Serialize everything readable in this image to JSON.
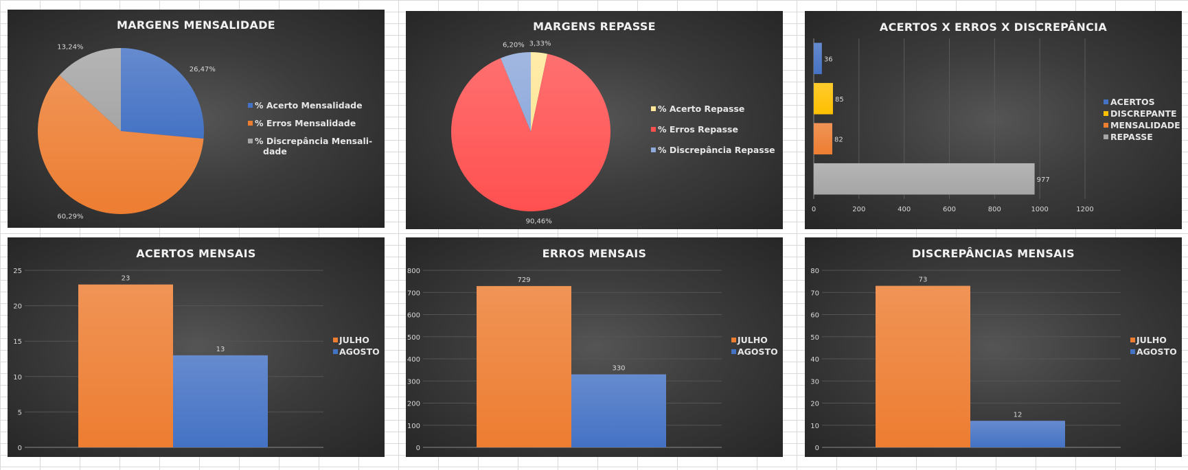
{
  "colors": {
    "blue": "#4472C4",
    "orange": "#ED7D31",
    "gray": "#A5A5A5",
    "yellow": "#FFC000",
    "red": "#FF5050",
    "lightyellow": "#FFE699",
    "lightblue": "#8EA9DB"
  },
  "chart_data": [
    {
      "type": "pie",
      "title": "MARGENS MENSALIDADE",
      "labels": [
        "% Acerto Mensalidade",
        "% Erros Mensalidade",
        "% Discrepância Mensali-dade"
      ],
      "legend_lines": [
        [
          "% Acerto Mensalidade"
        ],
        [
          "% Erros Mensalidade"
        ],
        [
          "% Discrepância Mensali-",
          "dade"
        ]
      ],
      "values": [
        26.47,
        60.29,
        13.24
      ],
      "data_labels": [
        "26,47%",
        "60,29%",
        "13,24%"
      ],
      "colors": [
        "#4472C4",
        "#ED7D31",
        "#A5A5A5"
      ],
      "legend": "right"
    },
    {
      "type": "pie",
      "title": "MARGENS REPASSE",
      "labels": [
        "% Acerto Repasse",
        "% Erros Repasse",
        "% Discrepância Repasse"
      ],
      "legend_lines": [
        [
          "% Acerto Repasse"
        ],
        [
          "% Erros Repasse"
        ],
        [
          "% Discrepância Repasse"
        ]
      ],
      "values": [
        3.33,
        90.46,
        6.2
      ],
      "data_labels": [
        "3,33%",
        "90,46%",
        "6,20%"
      ],
      "colors": [
        "#FFE699",
        "#FF5050",
        "#8EA9DB"
      ],
      "legend": "right"
    },
    {
      "type": "bar",
      "orientation": "horizontal",
      "title": "ACERTOS X ERROS X DISCREPÂNCIA",
      "series": [
        {
          "name": "ACERTOS",
          "value": 36,
          "color": "#4472C4"
        },
        {
          "name": "DISCREPANTE",
          "value": 85,
          "color": "#FFC000"
        },
        {
          "name": "MENSALIDADE",
          "value": 82,
          "color": "#ED7D31"
        },
        {
          "name": "REPASSE",
          "value": 977,
          "color": "#A5A5A5"
        }
      ],
      "xlim": [
        0,
        1200
      ],
      "ticks": [
        0,
        200,
        400,
        600,
        800,
        1000,
        1200
      ],
      "grid": true,
      "legend": "right"
    },
    {
      "type": "bar",
      "title": "ACERTOS MENSAIS",
      "series": [
        {
          "name": "JULHO",
          "value": 23,
          "color": "#ED7D31"
        },
        {
          "name": "AGOSTO",
          "value": 13,
          "color": "#4472C4"
        }
      ],
      "ylim": [
        0,
        25
      ],
      "ticks": [
        0,
        5,
        10,
        15,
        20,
        25
      ],
      "grid": true,
      "legend": "right"
    },
    {
      "type": "bar",
      "title": "ERROS MENSAIS",
      "series": [
        {
          "name": "JULHO",
          "value": 729,
          "color": "#ED7D31"
        },
        {
          "name": "AGOSTO",
          "value": 330,
          "color": "#4472C4"
        }
      ],
      "ylim": [
        0,
        800
      ],
      "ticks": [
        0,
        100,
        200,
        300,
        400,
        500,
        600,
        700,
        800
      ],
      "grid": true,
      "legend": "right"
    },
    {
      "type": "bar",
      "title": "DISCREPÂNCIAS MENSAIS",
      "series": [
        {
          "name": "JULHO",
          "value": 73,
          "color": "#ED7D31"
        },
        {
          "name": "AGOSTO",
          "value": 12,
          "color": "#4472C4"
        }
      ],
      "ylim": [
        0,
        80
      ],
      "ticks": [
        0,
        10,
        20,
        30,
        40,
        50,
        60,
        70,
        80
      ],
      "grid": true,
      "legend": "right"
    }
  ]
}
